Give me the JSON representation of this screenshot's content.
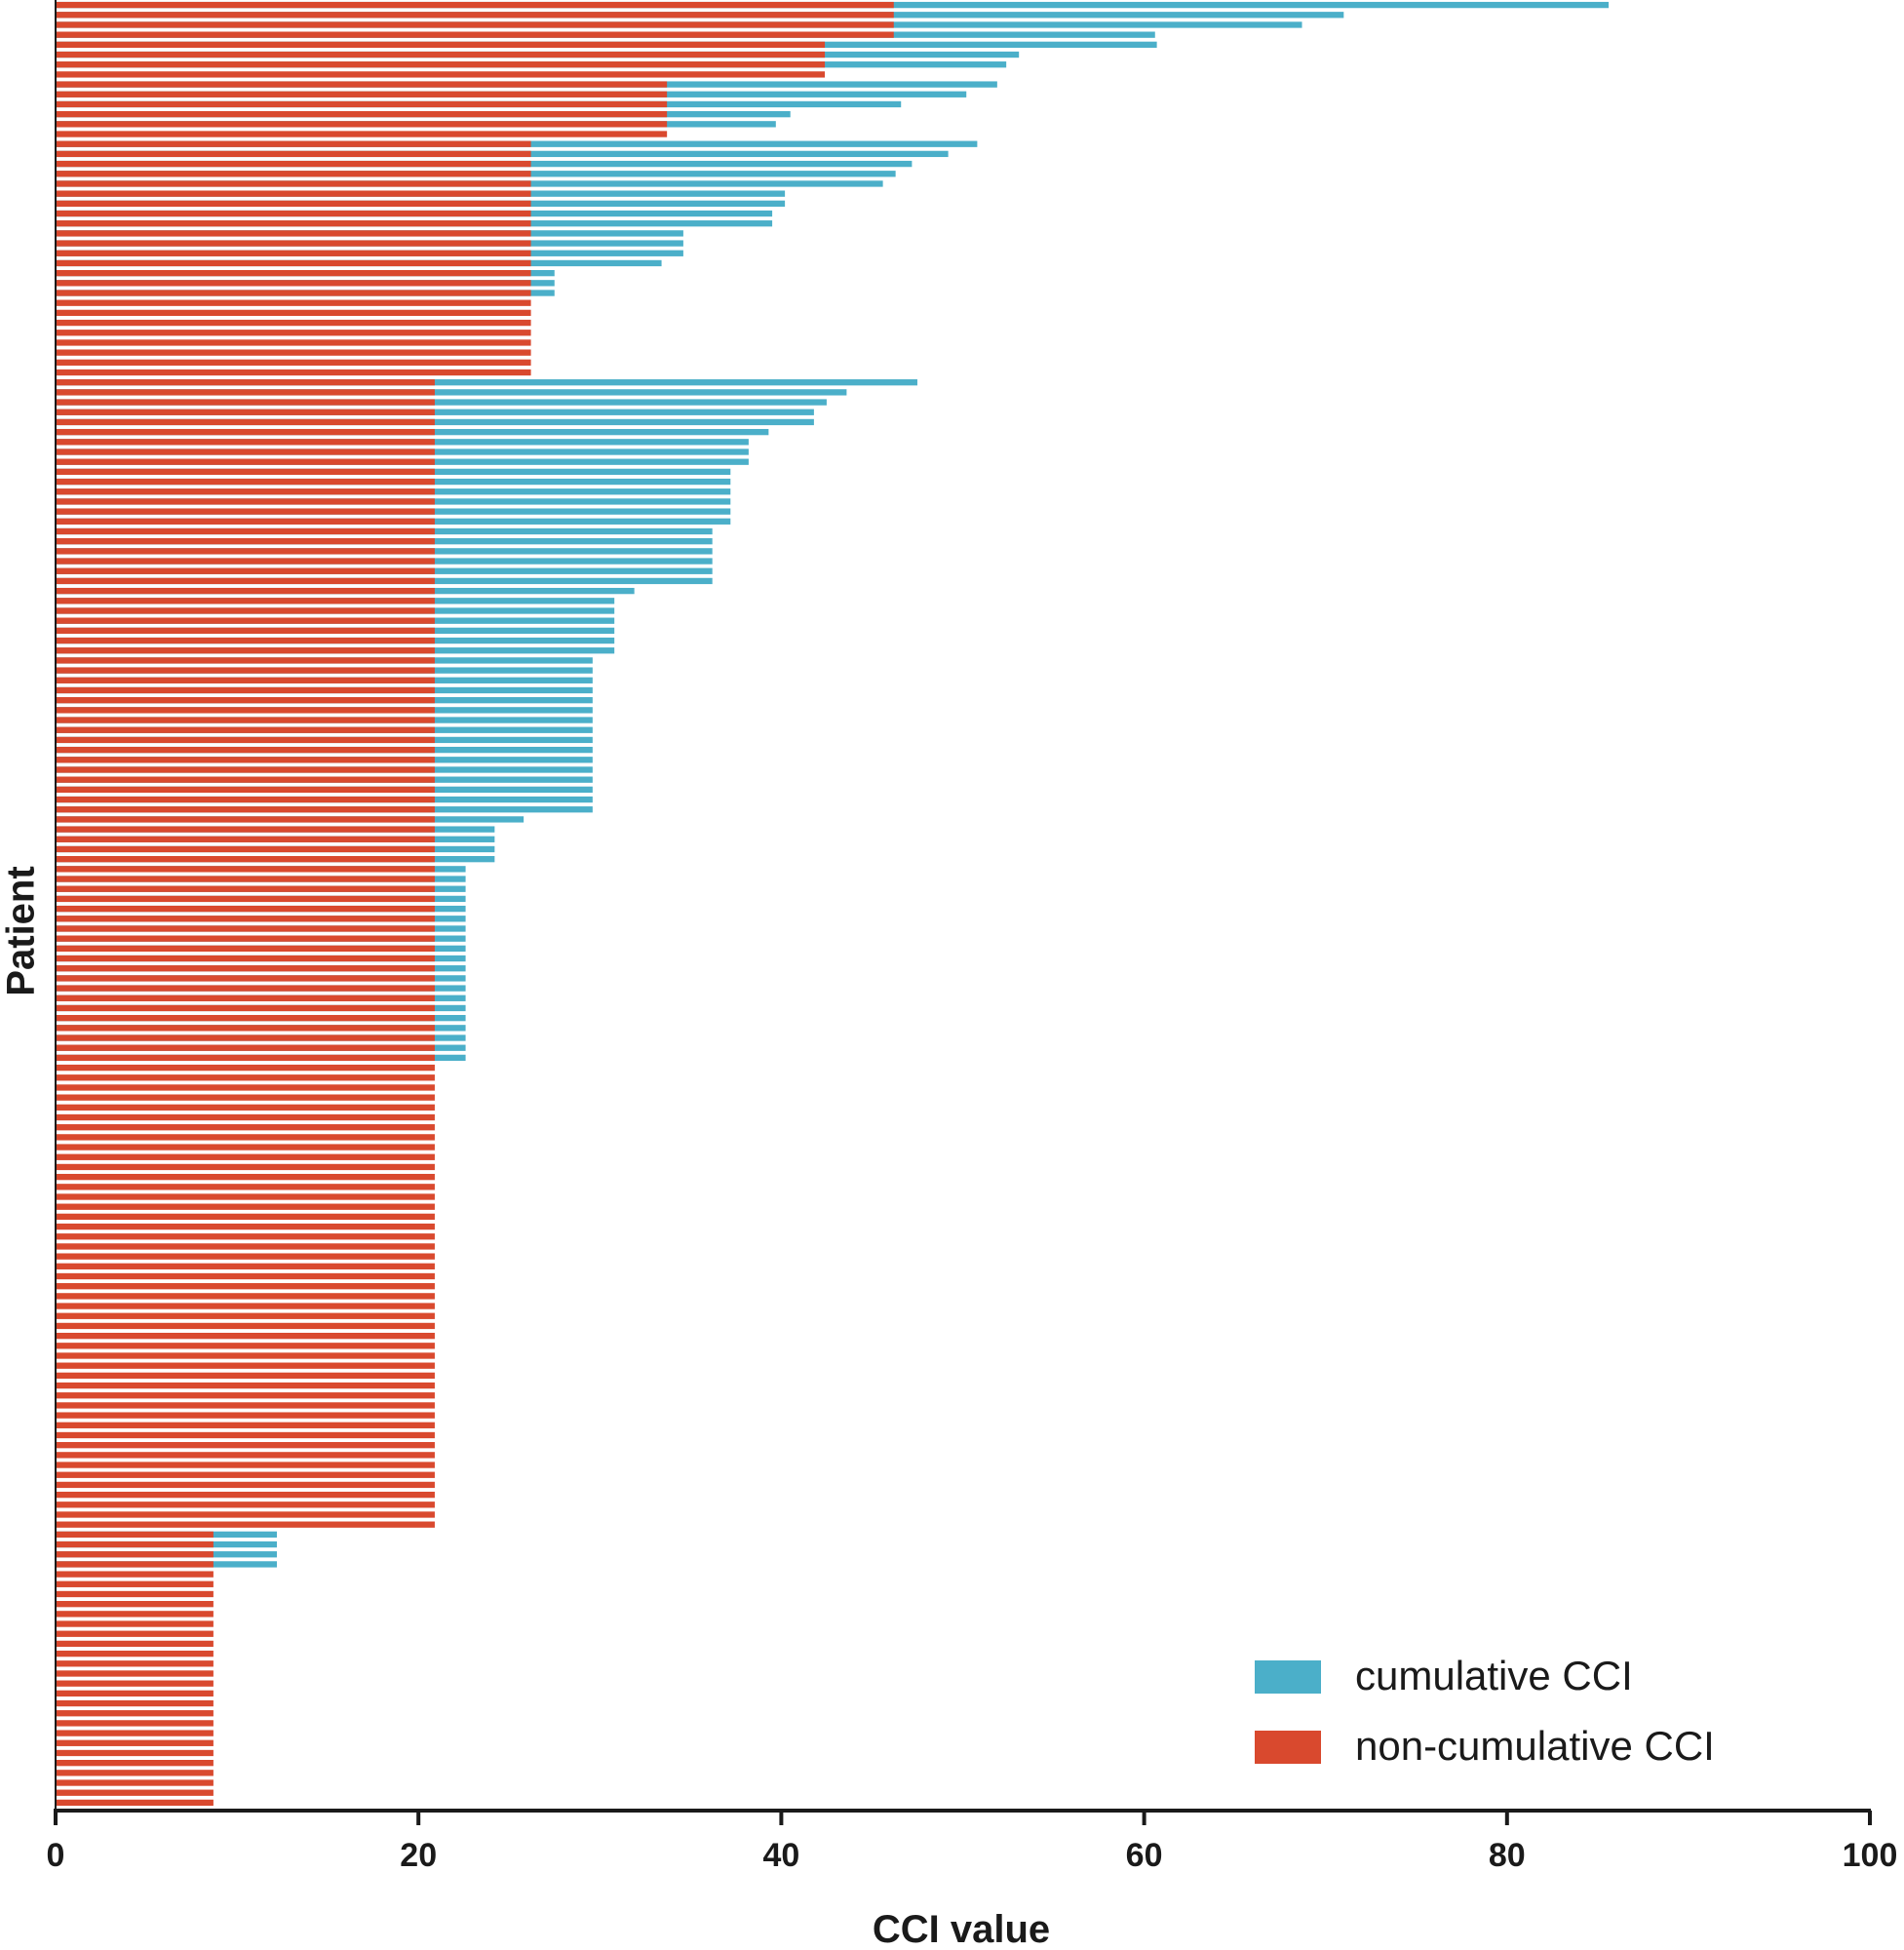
{
  "chart_data": {
    "type": "bar",
    "orientation": "horizontal",
    "stacked": true,
    "xlabel": "CCI value",
    "ylabel": "Patient",
    "xlim": [
      0,
      100
    ],
    "x_ticks": [
      0,
      20,
      40,
      60,
      80,
      100
    ],
    "grid": false,
    "legend_position": "bottom-right",
    "series": [
      {
        "name": "cumulative CCI",
        "color": "#4bafc9"
      },
      {
        "name": "non-cumulative CCI",
        "color": "#d9492e"
      }
    ],
    "groups": [
      {
        "noncumulative": 46.2,
        "count": 4,
        "cumulative": [
          85.6,
          71.0,
          68.7,
          60.6
        ]
      },
      {
        "noncumulative": 42.4,
        "count": 4,
        "cumulative": [
          60.7,
          53.1,
          52.4,
          null
        ]
      },
      {
        "noncumulative": 33.7,
        "count": 6,
        "cumulative": [
          51.9,
          50.2,
          46.6,
          40.5,
          39.7,
          null
        ]
      },
      {
        "noncumulative": 26.2,
        "count": 24,
        "cumulative": [
          50.8,
          49.2,
          47.2,
          46.3,
          45.6,
          40.2,
          40.2,
          39.5,
          39.5,
          34.6,
          34.6,
          34.6,
          33.4,
          27.5,
          27.5,
          27.5,
          null,
          null,
          null,
          null,
          null,
          null,
          null,
          null
        ]
      },
      {
        "noncumulative": 20.9,
        "count": 116,
        "cumulative": [
          47.5,
          43.6,
          42.5,
          41.8,
          41.8,
          39.3,
          38.2,
          38.2,
          38.2,
          37.2,
          37.2,
          37.2,
          37.2,
          37.2,
          37.2,
          36.2,
          36.2,
          36.2,
          36.2,
          36.2,
          36.2,
          31.9,
          30.8,
          30.8,
          30.8,
          30.8,
          30.8,
          30.8,
          29.6,
          29.6,
          29.6,
          29.6,
          29.6,
          29.6,
          29.6,
          29.6,
          29.6,
          29.6,
          29.6,
          29.6,
          29.6,
          29.6,
          29.6,
          29.6,
          25.8,
          24.2,
          24.2,
          24.2,
          24.2,
          22.6,
          22.6,
          22.6,
          22.6,
          22.6,
          22.6,
          22.6,
          22.6,
          22.6,
          22.6,
          22.6,
          22.6,
          22.6,
          22.6,
          22.6,
          22.6,
          22.6,
          22.6,
          22.6,
          22.6,
          null,
          null,
          null,
          null,
          null,
          null,
          null,
          null,
          null,
          null,
          null,
          null,
          null,
          null,
          null,
          null,
          null,
          null,
          null,
          null,
          null,
          null,
          null,
          null,
          null,
          null,
          null,
          null,
          null,
          null,
          null,
          null,
          null,
          null,
          null,
          null,
          null,
          null,
          null,
          null,
          null,
          null,
          null,
          null,
          null,
          null,
          null
        ]
      },
      {
        "noncumulative": 8.7,
        "count": 28,
        "cumulative": [
          12.2,
          12.2,
          12.2,
          12.2,
          null,
          null,
          null,
          null,
          null,
          null,
          null,
          null,
          null,
          null,
          null,
          null,
          null,
          null,
          null,
          null,
          null,
          null,
          null,
          null,
          null,
          null,
          null,
          null
        ]
      }
    ]
  }
}
